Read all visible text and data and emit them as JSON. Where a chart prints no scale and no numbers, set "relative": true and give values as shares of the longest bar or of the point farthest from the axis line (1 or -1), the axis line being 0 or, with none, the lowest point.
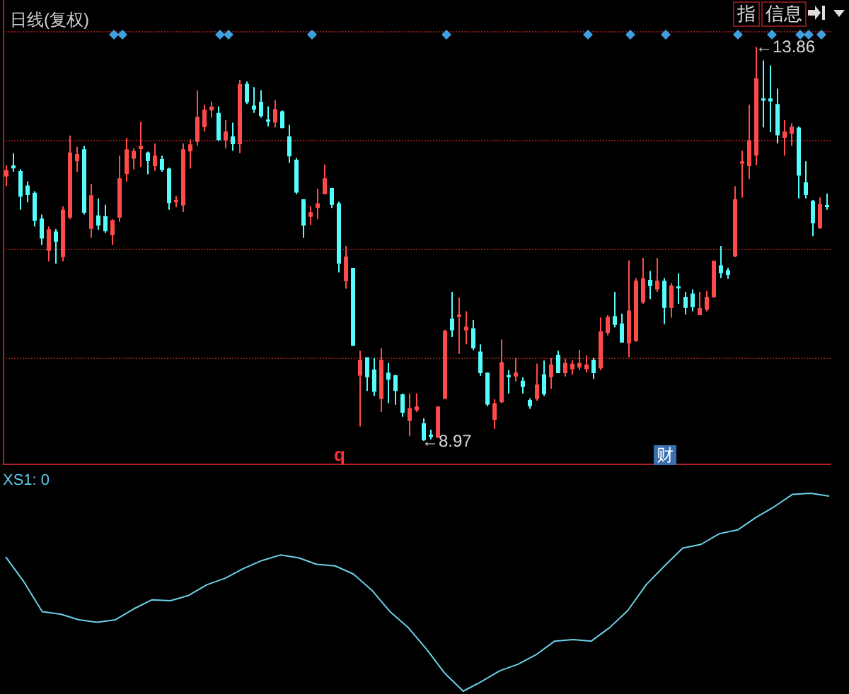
{
  "chart_data": [
    {
      "type": "candlestick",
      "title": "日线(复权)",
      "categories": [
        null,
        null,
        null,
        null,
        null,
        null,
        null,
        null,
        null,
        null,
        null,
        null,
        null,
        null,
        null,
        null,
        null,
        null,
        null,
        null,
        null,
        null,
        null,
        null,
        null,
        null,
        null,
        null,
        null,
        null,
        null,
        null,
        null,
        null,
        null,
        null,
        null,
        null,
        null,
        null,
        null,
        null,
        null,
        null,
        null,
        null,
        null,
        null,
        null,
        null,
        null,
        null,
        null,
        null,
        null,
        null,
        null,
        null,
        null,
        null,
        null,
        null,
        null,
        null,
        null,
        null,
        null,
        null,
        null,
        null,
        null,
        null,
        null,
        null,
        null,
        null,
        null,
        null,
        null,
        null,
        null,
        null,
        null,
        null,
        null,
        null,
        null,
        null,
        null,
        null,
        null,
        null,
        null,
        null,
        null,
        null,
        null,
        null,
        null,
        null,
        null,
        null,
        null,
        null,
        null,
        null,
        null,
        null,
        null,
        null,
        null,
        null,
        null,
        null,
        null,
        null,
        null
      ],
      "ohlc": [
        [
          12.26,
          12.39,
          12.13,
          12.32
        ],
        [
          12.38,
          12.54,
          12.31,
          12.36
        ],
        [
          12.31,
          12.34,
          11.84,
          12.01
        ],
        [
          12.13,
          12.19,
          11.93,
          12.03
        ],
        [
          12.04,
          12.07,
          11.63,
          11.71
        ],
        [
          11.72,
          11.78,
          11.4,
          11.49
        ],
        [
          11.34,
          11.63,
          11.2,
          11.59
        ],
        [
          11.56,
          11.6,
          11.17,
          11.45
        ],
        [
          11.26,
          11.88,
          11.2,
          11.83
        ],
        [
          11.75,
          12.76,
          11.72,
          12.54
        ],
        [
          12.45,
          12.62,
          12.31,
          12.52
        ],
        [
          12.58,
          12.63,
          11.78,
          11.81
        ],
        [
          11.61,
          12.16,
          11.49,
          12.01
        ],
        [
          11.76,
          11.98,
          11.59,
          11.65
        ],
        [
          11.75,
          11.9,
          11.55,
          11.58
        ],
        [
          11.53,
          11.72,
          11.4,
          11.7
        ],
        [
          11.75,
          12.51,
          11.69,
          12.22
        ],
        [
          12.29,
          12.73,
          12.19,
          12.58
        ],
        [
          12.48,
          12.6,
          12.34,
          12.56
        ],
        [
          12.6,
          12.93,
          12.37,
          12.62
        ],
        [
          12.54,
          12.56,
          12.28,
          12.45
        ],
        [
          12.39,
          12.66,
          12.32,
          12.5
        ],
        [
          12.46,
          12.51,
          12.31,
          12.34
        ],
        [
          12.34,
          12.36,
          11.84,
          11.93
        ],
        [
          11.94,
          12.01,
          11.87,
          11.95
        ],
        [
          11.9,
          12.66,
          11.81,
          12.58
        ],
        [
          12.57,
          12.71,
          12.35,
          12.64
        ],
        [
          12.69,
          13.32,
          12.63,
          12.98
        ],
        [
          12.87,
          13.14,
          12.81,
          13.07
        ],
        [
          13.08,
          13.18,
          12.98,
          13.11
        ],
        [
          13.03,
          13.12,
          12.69,
          12.71
        ],
        [
          12.71,
          12.95,
          12.6,
          12.8
        ],
        [
          12.74,
          12.92,
          12.57,
          12.66
        ],
        [
          12.66,
          13.45,
          12.54,
          13.39
        ],
        [
          13.39,
          13.43,
          13.15,
          13.18
        ],
        [
          13.12,
          13.36,
          13.04,
          13.09
        ],
        [
          13.17,
          13.32,
          12.98,
          13.01
        ],
        [
          12.95,
          13.12,
          12.87,
          12.94
        ],
        [
          12.93,
          13.2,
          12.86,
          13.08
        ],
        [
          13.05,
          13.07,
          12.85,
          12.86
        ],
        [
          12.74,
          12.89,
          12.42,
          12.51
        ],
        [
          12.45,
          12.48,
          12.03,
          12.06
        ],
        [
          11.96,
          11.97,
          11.49,
          11.65
        ],
        [
          11.76,
          11.88,
          11.65,
          11.8
        ],
        [
          11.87,
          12.1,
          11.72,
          11.91
        ],
        [
          12.04,
          12.4,
          12.03,
          12.22
        ],
        [
          12.1,
          12.11,
          11.86,
          11.91
        ],
        [
          11.91,
          11.94,
          11.06,
          11.18
        ],
        [
          10.96,
          11.39,
          10.86,
          11.25
        ],
        [
          11.11,
          11.11,
          10.15,
          10.16
        ],
        [
          9.79,
          10.09,
          9.15,
          9.97
        ],
        [
          10.0,
          10.0,
          9.59,
          9.77
        ],
        [
          9.85,
          10.0,
          9.53,
          9.59
        ],
        [
          9.5,
          10.12,
          9.33,
          9.97
        ],
        [
          9.81,
          9.94,
          9.44,
          9.74
        ],
        [
          9.78,
          9.79,
          9.42,
          9.6
        ],
        [
          9.54,
          9.56,
          9.27,
          9.33
        ],
        [
          9.23,
          9.56,
          9.03,
          9.37
        ],
        [
          9.36,
          9.56,
          9.33,
          9.39
        ],
        [
          9.18,
          9.25,
          8.97,
          8.99
        ],
        [
          9.04,
          9.11,
          8.99,
          9.03
        ],
        [
          9.02,
          9.4,
          9.01,
          9.39
        ],
        [
          9.5,
          10.35,
          9.5,
          10.33
        ],
        [
          10.48,
          10.82,
          10.26,
          10.35
        ],
        [
          10.52,
          10.75,
          10.05,
          10.53
        ],
        [
          10.35,
          10.58,
          10.17,
          10.38
        ],
        [
          10.36,
          10.47,
          10.1,
          10.13
        ],
        [
          10.07,
          10.17,
          9.78,
          9.82
        ],
        [
          9.81,
          9.82,
          9.4,
          9.43
        ],
        [
          9.24,
          9.49,
          9.12,
          9.43
        ],
        [
          9.46,
          10.23,
          9.44,
          9.94
        ],
        [
          9.78,
          9.85,
          9.56,
          9.77
        ],
        [
          9.78,
          10.0,
          9.71,
          9.81
        ],
        [
          9.71,
          9.76,
          9.56,
          9.65
        ],
        [
          9.47,
          9.5,
          9.37,
          9.41
        ],
        [
          9.5,
          9.93,
          9.47,
          9.66
        ],
        [
          9.79,
          9.97,
          9.53,
          9.56
        ],
        [
          9.77,
          10.0,
          9.62,
          9.91
        ],
        [
          10.03,
          10.09,
          9.82,
          9.82
        ],
        [
          9.82,
          9.99,
          9.77,
          9.93
        ],
        [
          9.87,
          9.97,
          9.79,
          9.92
        ],
        [
          9.89,
          10.1,
          9.85,
          9.93
        ],
        [
          9.87,
          10.03,
          9.82,
          9.91
        ],
        [
          9.97,
          10.0,
          9.74,
          9.82
        ],
        [
          9.88,
          10.5,
          9.85,
          10.32
        ],
        [
          10.32,
          10.53,
          10.28,
          10.5
        ],
        [
          10.51,
          10.82,
          10.38,
          10.42
        ],
        [
          10.42,
          10.55,
          10.19,
          10.2
        ],
        [
          10.19,
          11.21,
          10.01,
          10.58
        ],
        [
          10.22,
          10.99,
          10.2,
          10.95
        ],
        [
          10.7,
          11.24,
          10.67,
          10.98
        ],
        [
          10.96,
          11.08,
          10.73,
          10.9
        ],
        [
          10.86,
          11.24,
          10.82,
          10.95
        ],
        [
          10.95,
          10.99,
          10.42,
          10.63
        ],
        [
          10.63,
          10.93,
          10.5,
          10.89
        ],
        [
          10.88,
          11.05,
          10.67,
          10.87
        ],
        [
          10.75,
          10.82,
          10.54,
          10.63
        ],
        [
          10.79,
          10.85,
          10.58,
          10.64
        ],
        [
          10.54,
          10.82,
          10.54,
          10.61
        ],
        [
          10.61,
          10.83,
          10.58,
          10.75
        ],
        [
          10.76,
          11.2,
          10.75,
          11.2
        ],
        [
          11.14,
          11.39,
          10.99,
          11.06
        ],
        [
          11.08,
          11.12,
          10.98,
          11.04
        ],
        [
          11.27,
          12.13,
          11.25,
          11.96
        ],
        [
          12.42,
          12.57,
          11.99,
          12.43
        ],
        [
          12.39,
          13.14,
          12.22,
          12.69
        ],
        [
          12.52,
          13.86,
          12.39,
          13.46
        ],
        [
          13.21,
          13.69,
          12.86,
          13.2
        ],
        [
          13.21,
          13.63,
          12.8,
          13.19
        ],
        [
          13.14,
          13.34,
          12.66,
          12.77
        ],
        [
          12.74,
          12.95,
          12.51,
          12.8
        ],
        [
          12.79,
          12.91,
          12.63,
          12.86
        ],
        [
          12.85,
          12.87,
          11.98,
          12.27
        ],
        [
          12.17,
          12.44,
          11.98,
          12.03
        ],
        [
          11.94,
          11.96,
          11.51,
          11.68
        ],
        [
          11.62,
          11.99,
          11.6,
          11.9
        ],
        [
          11.89,
          12.04,
          11.84,
          11.88
        ]
      ],
      "colors": [
        "#ff4a4a",
        "#54fcfc",
        "#54fcfc",
        "#54fcfc",
        "#54fcfc",
        "#54fcfc",
        "#ff4a4a",
        "#54fcfc",
        "#ff4a4a",
        "#ff4a4a",
        "#ff4a4a",
        "#54fcfc",
        "#ff4a4a",
        "#54fcfc",
        "#54fcfc",
        "#ff4a4a",
        "#ff4a4a",
        "#ff4a4a",
        "#ff4a4a",
        "#ff4a4a",
        "#54fcfc",
        "#ff4a4a",
        "#54fcfc",
        "#54fcfc",
        "#ff4a4a",
        "#ff4a4a",
        "#ff4a4a",
        "#ff4a4a",
        "#ff4a4a",
        "#ff4a4a",
        "#54fcfc",
        "#ff4a4a",
        "#54fcfc",
        "#ff4a4a",
        "#54fcfc",
        "#54fcfc",
        "#54fcfc",
        "#54fcfc",
        "#ff4a4a",
        "#54fcfc",
        "#54fcfc",
        "#54fcfc",
        "#54fcfc",
        "#ff4a4a",
        "#ff4a4a",
        "#ff4a4a",
        "#54fcfc",
        "#54fcfc",
        "#ff4a4a",
        "#54fcfc",
        "#ff4a4a",
        "#54fcfc",
        "#54fcfc",
        "#ff4a4a",
        "#54fcfc",
        "#54fcfc",
        "#54fcfc",
        "#ff4a4a",
        "#ff4a4a",
        "#54fcfc",
        "#54fcfc",
        "#ff4a4a",
        "#ff4a4a",
        "#54fcfc",
        "#ff4a4a",
        "#ff4a4a",
        "#54fcfc",
        "#54fcfc",
        "#54fcfc",
        "#ff4a4a",
        "#ff4a4a",
        "#54fcfc",
        "#ff4a4a",
        "#54fcfc",
        "#54fcfc",
        "#ff4a4a",
        "#54fcfc",
        "#ff4a4a",
        "#54fcfc",
        "#ff4a4a",
        "#ff4a4a",
        "#ff4a4a",
        "#ff4a4a",
        "#54fcfc",
        "#ff4a4a",
        "#ff4a4a",
        "#54fcfc",
        "#54fcfc",
        "#ff4a4a",
        "#ff4a4a",
        "#ff4a4a",
        "#54fcfc",
        "#ff4a4a",
        "#54fcfc",
        "#ff4a4a",
        "#54fcfc",
        "#54fcfc",
        "#54fcfc",
        "#ff4a4a",
        "#ff4a4a",
        "#ff4a4a",
        "#54fcfc",
        "#54fcfc",
        "#ff4a4a",
        "#ff4a4a",
        "#ff4a4a",
        "#ff4a4a",
        "#54fcfc",
        "#54fcfc",
        "#54fcfc",
        "#ff4a4a",
        "#ff4a4a",
        "#54fcfc",
        "#54fcfc",
        "#54fcfc",
        "#ff4a4a",
        "#54fcfc"
      ],
      "ylim": [
        8.69,
        14.44
      ],
      "yticks": [
        {
          "value": 10,
          "label": null
        },
        {
          "value": 11.35,
          "label": null
        },
        {
          "value": 12.7,
          "label": null
        },
        {
          "value": 14.05,
          "label": null
        }
      ],
      "grid": "y",
      "tick_labels": false,
      "annotations": [
        "←13.86",
        "←8.97",
        "q",
        "财",
        "指",
        "信息"
      ]
    },
    {
      "type": "line",
      "relative": true,
      "categories": [
        null,
        null,
        null,
        null,
        null,
        null,
        null,
        null,
        null,
        null,
        null,
        null,
        null,
        null,
        null,
        null,
        null,
        null,
        null,
        null,
        null,
        null,
        null,
        null,
        null,
        null,
        null,
        null,
        null,
        null,
        null,
        null,
        null,
        null,
        null,
        null,
        null,
        null,
        null,
        null,
        null,
        null,
        null,
        null,
        null,
        null
      ],
      "series": [
        {
          "color": "#6ccfe8",
          "values": [
            0.679,
            0.552,
            0.402,
            0.389,
            0.361,
            0.348,
            0.361,
            0.416,
            0.462,
            0.457,
            0.484,
            0.538,
            0.571,
            0.62,
            0.66,
            0.688,
            0.674,
            0.641,
            0.633,
            0.592,
            0.511,
            0.402,
            0.321,
            0.212,
            0.09,
            0,
            0.049,
            0.103,
            0.136,
            0.185,
            0.253,
            0.261,
            0.253,
            0.321,
            0.408,
            0.538,
            0.633,
            0.723,
            0.742,
            0.796,
            0.815,
            0.878,
            0.932,
            0.995,
            1,
            0.986
          ]
        }
      ],
      "marker": "none",
      "tick_labels": false,
      "annotations": [
        "XS1: 0"
      ]
    }
  ]
}
